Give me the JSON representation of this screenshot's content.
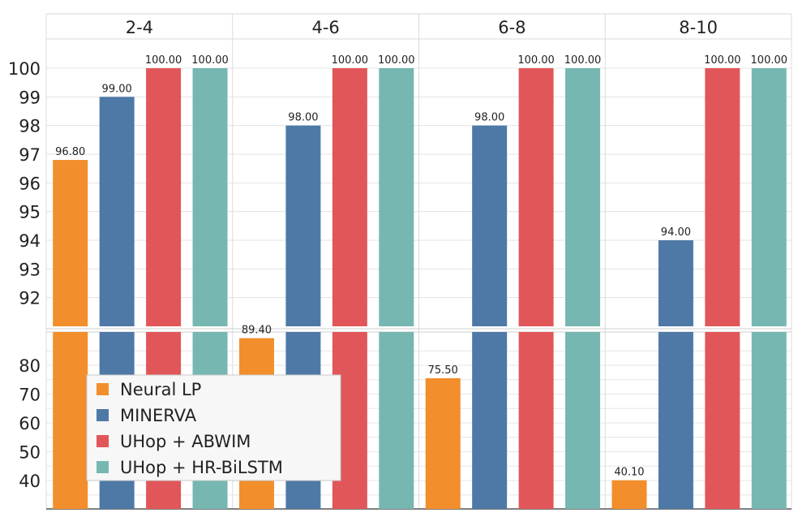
{
  "chart_data": {
    "type": "bar",
    "title": "",
    "xlabel": "",
    "ylabel": "",
    "categories": [
      "2-4",
      "4-6",
      "6-8",
      "8-10"
    ],
    "series": [
      {
        "name": "Neural LP",
        "color": "#f28e2b",
        "values": [
          96.8,
          89.4,
          75.5,
          40.1
        ],
        "labels": [
          "96.80",
          "89.40",
          "75.50",
          "40.10"
        ]
      },
      {
        "name": "MINERVA",
        "color": "#4e79a7",
        "values": [
          99.0,
          98.0,
          98.0,
          94.0
        ],
        "labels": [
          "99.00",
          "98.00",
          "98.00",
          "94.00"
        ]
      },
      {
        "name": "UHop + ABWIM",
        "color": "#e15759",
        "values": [
          100.0,
          100.0,
          100.0,
          100.0
        ],
        "labels": [
          "100.00",
          "100.00",
          "100.00",
          "100.00"
        ]
      },
      {
        "name": "UHop + HR-BiLSTM",
        "color": "#76b7b2",
        "values": [
          100.0,
          100.0,
          100.0,
          100.0
        ],
        "labels": [
          "100.00",
          "100.00",
          "100.00",
          "100.00"
        ]
      }
    ],
    "y_axis_upper": {
      "range": [
        91,
        100.5
      ],
      "ticks": [
        "92",
        "93",
        "94",
        "95",
        "96",
        "97",
        "98",
        "99",
        "100"
      ]
    },
    "y_axis_lower": {
      "range": [
        31,
        90.5
      ],
      "ticks": [
        "40",
        "50",
        "60",
        "70",
        "80"
      ]
    },
    "legend": {
      "placement": "bottom-left",
      "entries": [
        "Neural LP",
        "MINERVA",
        "UHop + ABWIM",
        "UHop + HR-BiLSTM"
      ]
    },
    "grid": true
  }
}
